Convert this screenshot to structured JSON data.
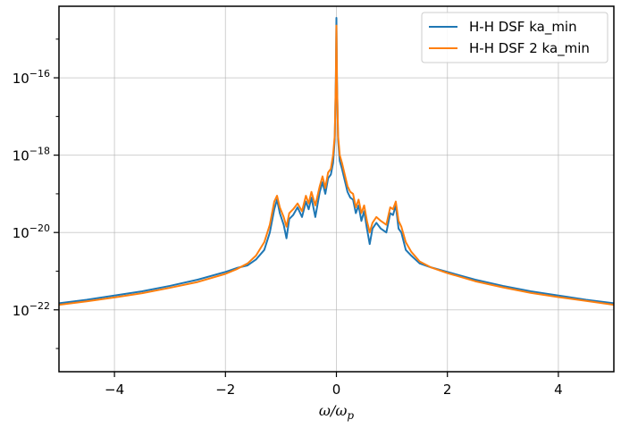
{
  "chart_data": {
    "type": "line",
    "xlabel": "ω/ω_p",
    "ylabel": "",
    "xlim": [
      -5,
      5
    ],
    "ylim_log10": [
      -23.6,
      -14.15
    ],
    "yscale": "log",
    "grid": true,
    "legend_placement": "top-right",
    "xticks": [
      -4,
      -2,
      0,
      2,
      4
    ],
    "xtick_labels": [
      "−4",
      "−2",
      "0",
      "2",
      "4"
    ],
    "yticks_log10": [
      -22,
      -20,
      -18,
      -16
    ],
    "series": [
      {
        "name": "H-H DSF ka_min",
        "color": "#1f77b4",
        "points_log10": [
          [
            -5.0,
            -21.83
          ],
          [
            -4.5,
            -21.74
          ],
          [
            -4.0,
            -21.63
          ],
          [
            -3.5,
            -21.52
          ],
          [
            -3.0,
            -21.38
          ],
          [
            -2.5,
            -21.22
          ],
          [
            -2.0,
            -21.02
          ],
          [
            -1.8,
            -20.92
          ],
          [
            -1.6,
            -20.85
          ],
          [
            -1.45,
            -20.7
          ],
          [
            -1.3,
            -20.45
          ],
          [
            -1.2,
            -20.0
          ],
          [
            -1.12,
            -19.4
          ],
          [
            -1.07,
            -19.15
          ],
          [
            -1.02,
            -19.5
          ],
          [
            -0.95,
            -19.8
          ],
          [
            -0.9,
            -20.15
          ],
          [
            -0.85,
            -19.65
          ],
          [
            -0.78,
            -19.55
          ],
          [
            -0.7,
            -19.35
          ],
          [
            -0.62,
            -19.6
          ],
          [
            -0.55,
            -19.2
          ],
          [
            -0.5,
            -19.4
          ],
          [
            -0.45,
            -19.1
          ],
          [
            -0.38,
            -19.6
          ],
          [
            -0.3,
            -18.95
          ],
          [
            -0.25,
            -18.7
          ],
          [
            -0.2,
            -19.0
          ],
          [
            -0.15,
            -18.6
          ],
          [
            -0.1,
            -18.5
          ],
          [
            -0.06,
            -18.2
          ],
          [
            -0.03,
            -17.6
          ],
          [
            -0.01,
            -16.0
          ],
          [
            0.0,
            -14.45
          ],
          [
            0.01,
            -16.0
          ],
          [
            0.03,
            -17.6
          ],
          [
            0.06,
            -18.15
          ],
          [
            0.1,
            -18.35
          ],
          [
            0.15,
            -18.65
          ],
          [
            0.2,
            -18.95
          ],
          [
            0.25,
            -19.1
          ],
          [
            0.3,
            -19.15
          ],
          [
            0.35,
            -19.5
          ],
          [
            0.4,
            -19.3
          ],
          [
            0.45,
            -19.7
          ],
          [
            0.5,
            -19.45
          ],
          [
            0.55,
            -19.9
          ],
          [
            0.6,
            -20.3
          ],
          [
            0.65,
            -19.9
          ],
          [
            0.72,
            -19.75
          ],
          [
            0.8,
            -19.9
          ],
          [
            0.9,
            -20.0
          ],
          [
            0.97,
            -19.5
          ],
          [
            1.02,
            -19.55
          ],
          [
            1.07,
            -19.3
          ],
          [
            1.12,
            -19.9
          ],
          [
            1.17,
            -20.0
          ],
          [
            1.25,
            -20.45
          ],
          [
            1.35,
            -20.6
          ],
          [
            1.5,
            -20.8
          ],
          [
            1.7,
            -20.9
          ],
          [
            2.0,
            -21.02
          ],
          [
            2.5,
            -21.22
          ],
          [
            3.0,
            -21.38
          ],
          [
            3.5,
            -21.52
          ],
          [
            4.0,
            -21.63
          ],
          [
            4.5,
            -21.74
          ],
          [
            5.0,
            -21.83
          ]
        ]
      },
      {
        "name": "H-H DSF 2 ka_min",
        "color": "#ff7f0e",
        "points_log10": [
          [
            -5.0,
            -21.87
          ],
          [
            -4.5,
            -21.78
          ],
          [
            -4.0,
            -21.68
          ],
          [
            -3.5,
            -21.57
          ],
          [
            -3.0,
            -21.43
          ],
          [
            -2.5,
            -21.28
          ],
          [
            -2.0,
            -21.07
          ],
          [
            -1.8,
            -20.95
          ],
          [
            -1.6,
            -20.8
          ],
          [
            -1.45,
            -20.6
          ],
          [
            -1.3,
            -20.25
          ],
          [
            -1.2,
            -19.8
          ],
          [
            -1.12,
            -19.2
          ],
          [
            -1.07,
            -19.05
          ],
          [
            -1.02,
            -19.35
          ],
          [
            -0.95,
            -19.6
          ],
          [
            -0.9,
            -19.85
          ],
          [
            -0.85,
            -19.5
          ],
          [
            -0.78,
            -19.4
          ],
          [
            -0.7,
            -19.25
          ],
          [
            -0.62,
            -19.45
          ],
          [
            -0.55,
            -19.05
          ],
          [
            -0.5,
            -19.25
          ],
          [
            -0.45,
            -18.95
          ],
          [
            -0.38,
            -19.3
          ],
          [
            -0.3,
            -18.8
          ],
          [
            -0.25,
            -18.55
          ],
          [
            -0.2,
            -18.85
          ],
          [
            -0.15,
            -18.45
          ],
          [
            -0.1,
            -18.35
          ],
          [
            -0.06,
            -18.0
          ],
          [
            -0.03,
            -17.5
          ],
          [
            -0.01,
            -16.1
          ],
          [
            0.0,
            -14.65
          ],
          [
            0.01,
            -16.1
          ],
          [
            0.03,
            -17.5
          ],
          [
            0.06,
            -18.0
          ],
          [
            0.1,
            -18.2
          ],
          [
            0.15,
            -18.5
          ],
          [
            0.2,
            -18.8
          ],
          [
            0.25,
            -18.95
          ],
          [
            0.3,
            -19.0
          ],
          [
            0.35,
            -19.35
          ],
          [
            0.4,
            -19.15
          ],
          [
            0.45,
            -19.5
          ],
          [
            0.5,
            -19.3
          ],
          [
            0.55,
            -19.7
          ],
          [
            0.6,
            -20.0
          ],
          [
            0.65,
            -19.75
          ],
          [
            0.72,
            -19.6
          ],
          [
            0.8,
            -19.7
          ],
          [
            0.9,
            -19.8
          ],
          [
            0.97,
            -19.35
          ],
          [
            1.02,
            -19.4
          ],
          [
            1.07,
            -19.2
          ],
          [
            1.12,
            -19.7
          ],
          [
            1.17,
            -19.85
          ],
          [
            1.25,
            -20.25
          ],
          [
            1.35,
            -20.5
          ],
          [
            1.5,
            -20.75
          ],
          [
            1.7,
            -20.9
          ],
          [
            2.0,
            -21.05
          ],
          [
            2.5,
            -21.26
          ],
          [
            3.0,
            -21.42
          ],
          [
            3.5,
            -21.56
          ],
          [
            4.0,
            -21.67
          ],
          [
            4.5,
            -21.77
          ],
          [
            5.0,
            -21.87
          ]
        ]
      }
    ]
  }
}
